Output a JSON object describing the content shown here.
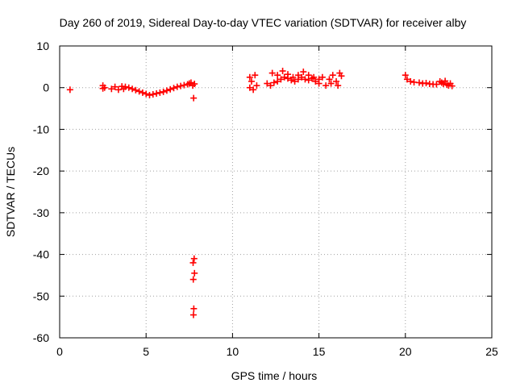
{
  "chart_data": {
    "type": "scatter",
    "title": "Day 260 of 2019, Sidereal Day-to-day VTEC variation (SDTVAR) for receiver alby",
    "xlabel": "GPS time / hours",
    "ylabel": "SDTVAR / TECUs",
    "xlim": [
      0,
      25
    ],
    "ylim": [
      -60,
      10
    ],
    "xticks": [
      0,
      5,
      10,
      15,
      20,
      25
    ],
    "yticks": [
      10,
      0,
      -10,
      -20,
      -30,
      -40,
      -50,
      -60
    ],
    "grid": true,
    "marker": "plus",
    "marker_color": "#ff0000",
    "series": [
      {
        "name": "SDTVAR",
        "x": [
          0.6,
          2.5,
          2.5,
          2.6,
          3.0,
          3.2,
          3.4,
          3.6,
          3.7,
          3.8,
          4.0,
          4.2,
          4.4,
          4.6,
          4.8,
          5.0,
          5.2,
          5.4,
          5.6,
          5.8,
          6.0,
          6.2,
          6.4,
          6.6,
          6.8,
          7.0,
          7.2,
          7.4,
          7.5,
          7.6,
          7.7,
          7.8,
          7.75,
          7.78,
          7.72,
          7.8,
          7.73,
          7.76,
          7.74,
          11.0,
          11.1,
          11.3,
          11.0,
          11.2,
          11.4,
          12.0,
          12.2,
          12.4,
          12.6,
          12.8,
          13.0,
          13.2,
          13.4,
          13.6,
          13.8,
          14.0,
          14.2,
          14.4,
          14.6,
          14.8,
          15.0,
          15.2,
          12.3,
          12.6,
          12.9,
          13.2,
          13.5,
          13.8,
          14.1,
          14.4,
          14.7,
          15.0,
          15.4,
          15.6,
          15.8,
          16.0,
          16.2,
          16.3,
          16.1,
          15.7,
          20.0,
          20.1,
          20.3,
          20.5,
          20.8,
          21.0,
          21.2,
          21.4,
          21.6,
          21.8,
          22.0,
          22.1,
          22.2,
          22.3,
          22.4,
          22.5,
          22.6,
          22.7
        ],
        "y": [
          -0.5,
          0.5,
          -0.2,
          0.0,
          -0.3,
          0.2,
          -0.5,
          0.3,
          -0.3,
          0.2,
          0.0,
          -0.3,
          -0.6,
          -0.9,
          -1.2,
          -1.5,
          -1.8,
          -1.6,
          -1.4,
          -1.2,
          -1.0,
          -0.7,
          -0.4,
          -0.1,
          0.2,
          0.4,
          0.6,
          0.8,
          1.0,
          1.2,
          0.5,
          0.9,
          -2.5,
          -41.0,
          -42.0,
          -44.5,
          -46.0,
          -53.0,
          -54.5,
          2.5,
          1.5,
          3.0,
          0.0,
          -0.5,
          0.5,
          1.0,
          0.5,
          1.2,
          1.5,
          2.0,
          2.5,
          2.2,
          1.8,
          1.5,
          2.0,
          2.5,
          2.0,
          1.8,
          2.2,
          1.5,
          2.0,
          2.5,
          3.5,
          3.0,
          4.0,
          3.2,
          2.5,
          3.0,
          3.8,
          3.0,
          2.5,
          1.0,
          0.5,
          2.0,
          3.0,
          1.5,
          3.5,
          2.8,
          0.5,
          1.0,
          3.0,
          2.0,
          1.5,
          1.3,
          1.2,
          1.0,
          1.1,
          0.9,
          0.8,
          0.8,
          1.5,
          1.2,
          0.9,
          1.6,
          0.7,
          0.5,
          1.0,
          0.4
        ]
      }
    ]
  }
}
